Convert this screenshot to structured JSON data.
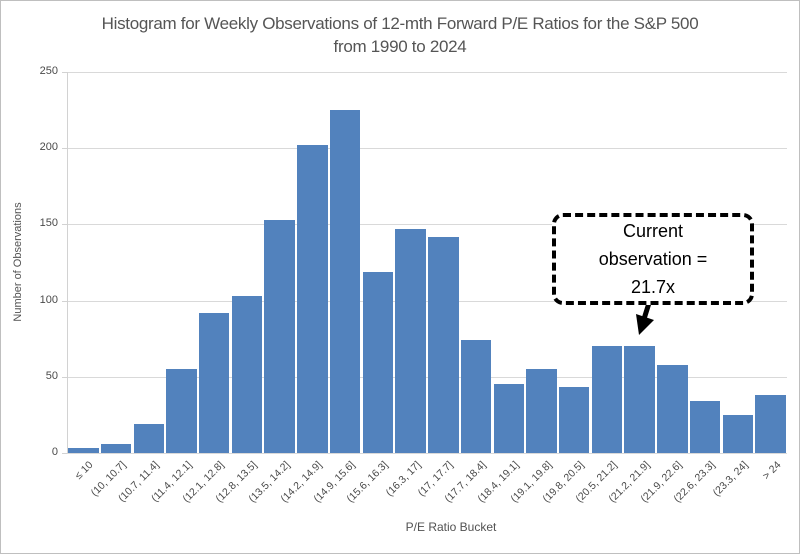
{
  "chart_data": {
    "type": "bar",
    "title_line1": "Histogram for Weekly Observations of 12-mth Forward P/E Ratios for the S&P 500",
    "title_line2": "from 1990 to 2024",
    "xlabel": "P/E Ratio Bucket",
    "ylabel": "Number of Observations",
    "ylim": [
      0,
      250
    ],
    "yticks": [
      0,
      50,
      100,
      150,
      200,
      250
    ],
    "grid": true,
    "legend": false,
    "bar_color": "#5282bd",
    "gridline_color": "#d9d9d9",
    "categories": [
      "≤ 10",
      "(10, 10.7]",
      "(10.7, 11.4]",
      "(11.4, 12.1]",
      "(12.1, 12.8]",
      "(12.8, 13.5]",
      "(13.5, 14.2]",
      "(14.2, 14.9]",
      "(14.9, 15.6]",
      "(15.6, 16.3]",
      "(16.3, 17]",
      "(17, 17.7]",
      "(17.7, 18.4]",
      "(18.4, 19.1]",
      "(19.1, 19.8]",
      "(19.8, 20.5]",
      "(20.5, 21.2]",
      "(21.2, 21.9]",
      "(21.9, 22.6]",
      "(22.6, 23.3]",
      "(23.3, 24]",
      "> 24"
    ],
    "values": [
      3,
      6,
      19,
      55,
      92,
      103,
      153,
      202,
      225,
      119,
      147,
      142,
      74,
      45,
      55,
      43,
      70,
      70,
      58,
      34,
      25,
      38
    ],
    "annotation": {
      "line1": "Current",
      "line2": "observation =",
      "line3": "21.7x",
      "target_category": "(21.2, 21.9]",
      "arrow_color": "#000000"
    }
  }
}
